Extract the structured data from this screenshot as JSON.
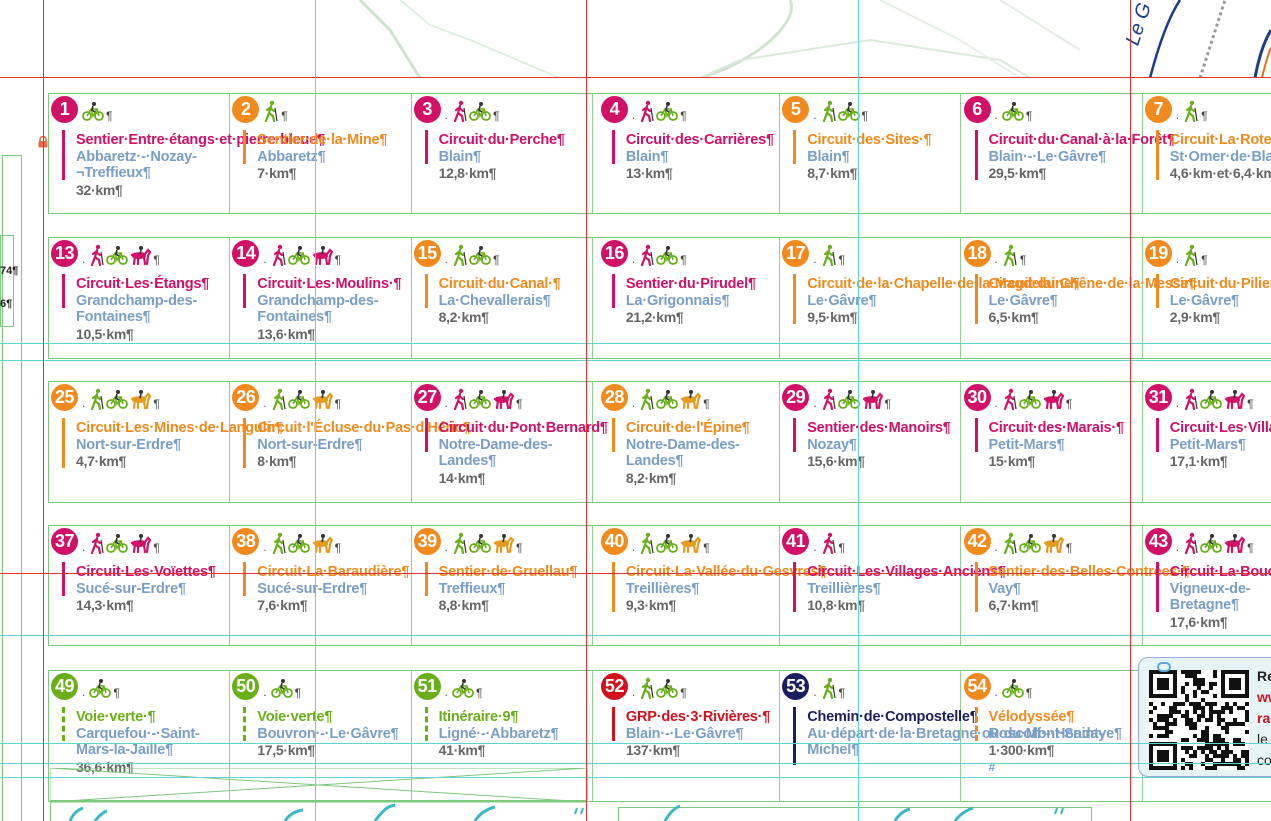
{
  "colors": {
    "magenta": "#d01166",
    "orange": "#f08a1e",
    "green": "#6aae1a",
    "red": "#d2111d",
    "navy": "#1b1f5e",
    "place": "#7a9ec5",
    "distance": "#666666"
  },
  "left_margin_numbers": [
    "74¶",
    "6¶"
  ],
  "rows": [
    {
      "cells": [
        {
          "num": "1",
          "color": "magenta",
          "icons": [
            "bike-icon"
          ],
          "dot": false,
          "title": "Sentier·Entre·étangs·et·pierre·bleue¶",
          "place": "Abbaretz·-·Nozay-¬Treffieux¶",
          "dist": "32·km¶"
        },
        {
          "num": "2",
          "color": "orange",
          "icons": [
            "hiker-icon"
          ],
          "dot": false,
          "title": "Sentier·de·la·Mine¶",
          "place": "Abbaretz¶",
          "dist": "7·km¶"
        },
        {
          "num": "3",
          "color": "magenta",
          "icons": [
            "hiker-icon",
            "bike-icon"
          ],
          "dot": true,
          "title": "Circuit·du·Perche¶",
          "place": "Blain¶",
          "dist": "12,8·km¶"
        },
        {
          "num": "4",
          "color": "magenta",
          "icons": [
            "hiker-icon",
            "bike-icon"
          ],
          "dot": true,
          "title": "Circuit·des·Carrières¶",
          "place": "Blain¶",
          "dist": "13·km¶"
        },
        {
          "num": "5",
          "color": "orange",
          "icons": [
            "hiker-icon",
            "bike-icon"
          ],
          "dot": true,
          "title": "Circuit·des·Sites·¶",
          "place": "Blain¶",
          "dist": "8,7·km¶"
        },
        {
          "num": "6",
          "color": "magenta",
          "icons": [
            "bike-icon"
          ],
          "dot": true,
          "title": "Circuit·du·Canal·à·la·Forêt¶",
          "place": "Blain·-·Le·Gâvre¶",
          "dist": "29,5·km¶"
        },
        {
          "num": "7",
          "color": "orange",
          "icons": [
            "hiker-icon"
          ],
          "dot": true,
          "title": "Circuit·La·Rote·du·Farinier¶",
          "place": "St·Omer·de·Blain¶",
          "dist": "4,6·km·et·6,4·km¶"
        }
      ]
    },
    {
      "cells": [
        {
          "num": "13",
          "color": "magenta",
          "icons": [
            "hiker-icon",
            "bike-icon",
            "horse-icon"
          ],
          "dot": true,
          "title": "Circuit·Les·Étangs¶",
          "place": "Grandchamp-des-Fontaines¶",
          "dist": "10,5·km¶"
        },
        {
          "num": "14",
          "color": "magenta",
          "icons": [
            "hiker-icon",
            "bike-icon",
            "horse-icon"
          ],
          "dot": true,
          "title": "Circuit·Les·Moulins·¶",
          "place": "Grandchamp-des-Fontaines¶",
          "dist": "13,6·km¶"
        },
        {
          "num": "15",
          "color": "orange",
          "icons": [
            "hiker-icon",
            "bike-icon"
          ],
          "dot": true,
          "title": "Circuit·du·Canal·¶",
          "place": "La·Chevallerais¶",
          "dist": "8,2·km¶"
        },
        {
          "num": "16",
          "color": "magenta",
          "icons": [
            "hiker-icon",
            "bike-icon"
          ],
          "dot": true,
          "title": "Sentier·du·Pirudel¶",
          "place": "La·Grigonnais¶",
          "dist": "21,2·km¶"
        },
        {
          "num": "17",
          "color": "orange",
          "icons": [
            "hiker-icon"
          ],
          "dot": true,
          "title": "Circuit·de·la·Chapelle·de·la·Magdelaine¶",
          "place": "Le·Gâvre¶",
          "dist": "9,5·km¶"
        },
        {
          "num": "18",
          "color": "orange",
          "icons": [
            "hiker-icon"
          ],
          "dot": true,
          "title": "Circuit·du·Chêne·de·la·Messe¶",
          "place": "Le·Gâvre¶",
          "dist": "6,5·km¶"
        },
        {
          "num": "19",
          "color": "orange",
          "icons": [
            "hiker-icon"
          ],
          "dot": true,
          "title": "Circuit·du·Pilier¶",
          "place": "Le·Gâvre¶",
          "dist": "2,9·km¶"
        }
      ]
    },
    {
      "cells": [
        {
          "num": "25",
          "color": "orange",
          "icons": [
            "hiker-icon",
            "bike-icon",
            "horse-icon"
          ],
          "dot": true,
          "title": "Circuit·Les·Mines·de·Languin¶",
          "place": "Nort-sur-Erdre¶",
          "dist": "4,7·km¶"
        },
        {
          "num": "26",
          "color": "orange",
          "icons": [
            "hiker-icon",
            "bike-icon",
            "horse-icon"
          ],
          "dot": true,
          "title": "Circuit·l'Écluse·du·Pas·d'Héric¶",
          "place": "Nort-sur-Erdre¶",
          "dist": "8·km¶"
        },
        {
          "num": "27",
          "color": "magenta",
          "icons": [
            "hiker-icon",
            "bike-icon",
            "horse-icon"
          ],
          "dot": true,
          "title": "Circuit·du·Pont·Bernard¶",
          "place": "Notre-Dame-des-Landes¶",
          "dist": "14·km¶"
        },
        {
          "num": "28",
          "color": "orange",
          "icons": [
            "hiker-icon",
            "bike-icon",
            "horse-icon"
          ],
          "dot": true,
          "title": "Circuit·de·l'Épine¶",
          "place": "Notre-Dame-des-Landes¶",
          "dist": "8,2·km¶"
        },
        {
          "num": "29",
          "color": "magenta",
          "icons": [
            "hiker-icon",
            "bike-icon",
            "horse-icon"
          ],
          "dot": true,
          "title": "Sentier·des·Manoirs¶",
          "place": "Nozay¶",
          "dist": "15,6·km¶"
        },
        {
          "num": "30",
          "color": "magenta",
          "icons": [
            "hiker-icon",
            "bike-icon",
            "horse-icon"
          ],
          "dot": true,
          "title": "Circuit·des·Marais·¶",
          "place": "Petit-Mars¶",
          "dist": "15·km¶"
        },
        {
          "num": "31",
          "color": "magenta",
          "icons": [
            "hiker-icon",
            "bike-icon",
            "horse-icon"
          ],
          "dot": true,
          "title": "Circuit·Les·Villages·¶",
          "place": "Petit-Mars¶",
          "dist": "17,1·km¶"
        }
      ]
    },
    {
      "cells": [
        {
          "num": "37",
          "color": "magenta",
          "icons": [
            "hiker-icon",
            "bike-icon",
            "horse-icon"
          ],
          "dot": true,
          "title": "Circuit·Les·Voïettes¶",
          "place": "Sucé-sur-Erdre¶",
          "dist": "14,3·km¶"
        },
        {
          "num": "38",
          "color": "orange",
          "icons": [
            "hiker-icon",
            "bike-icon",
            "horse-icon"
          ],
          "dot": true,
          "title": "Circuit·La·Baraudière¶",
          "place": "Sucé-sur-Erdre¶",
          "dist": "7,6·km¶"
        },
        {
          "num": "39",
          "color": "orange",
          "icons": [
            "hiker-icon",
            "bike-icon",
            "horse-icon"
          ],
          "dot": true,
          "title": "Sentier·de·Gruellau¶",
          "place": "Treffieux¶",
          "dist": "8,8·km¶"
        },
        {
          "num": "40",
          "color": "orange",
          "icons": [
            "hiker-icon",
            "bike-icon",
            "horse-icon"
          ],
          "dot": true,
          "title": "Circuit·La·Vallée·du·Gesvres¶",
          "place": "Treillières¶",
          "dist": "9,3·km¶"
        },
        {
          "num": "41",
          "color": "magenta",
          "icons": [
            "hiker-icon"
          ],
          "dot": true,
          "title": "Circuit·Les·Villages·Anciens¶",
          "place": "Treillières¶",
          "dist": "10,8·km¶"
        },
        {
          "num": "42",
          "color": "orange",
          "icons": [
            "hiker-icon",
            "bike-icon",
            "horse-icon"
          ],
          "dot": true,
          "title": "Sentier·des·Belles·Contrées·¶",
          "place": "Vay¶",
          "dist": "6,7·km¶"
        },
        {
          "num": "43",
          "color": "magenta",
          "icons": [
            "hiker-icon",
            "bike-icon",
            "horse-icon"
          ],
          "dot": true,
          "title": "Circuit·La·Boucle·du·Moulin¶",
          "place": "Vigneux-de-Bretagne¶",
          "dist": "17,6·km¶"
        }
      ]
    },
    {
      "cells": [
        {
          "num": "49",
          "color": "green",
          "icons": [
            "bike-icon"
          ],
          "dot": true,
          "dashed": true,
          "title": "Voie·verte·¶",
          "place": "Carquefou·-·Saint-Mars-la-Jaille¶",
          "dist": "36,6·km¶"
        },
        {
          "num": "50",
          "color": "green",
          "icons": [
            "bike-icon"
          ],
          "dot": true,
          "dashed": true,
          "title": "Voie·verte¶",
          "place": "Bouvron·-·Le·Gâvre¶",
          "dist": "17,5·km¶"
        },
        {
          "num": "51",
          "color": "green",
          "icons": [
            "bike-icon"
          ],
          "dot": true,
          "dashed": true,
          "title": "Itinéraire·9¶",
          "place": "Ligné·-·Abbaretz¶",
          "dist": "41·km¶"
        },
        {
          "num": "52",
          "color": "red",
          "icons": [
            "hiker-icon",
            "bike-icon"
          ],
          "dot": true,
          "title": "GRP·des·3·Rivières·¶",
          "place": "Blain·-·Le·Gâvre¶",
          "dist": "137·km¶"
        },
        {
          "num": "53",
          "color": "navy",
          "icons": [
            "hiker-icon"
          ],
          "dot": true,
          "title": "Chemin·de·Compostelle¶",
          "place": "Au·départ·de·la·Bretagne·ou·du·Mont·Saint-Michel¶",
          "dist": ""
        },
        {
          "num": "54",
          "color": "orange",
          "icons": [
            "bike-icon"
          ],
          "dot": true,
          "dashed": true,
          "title": "Vélodyssée¶",
          "place": "Roscoff·-·Hendaye¶",
          "dist": "1·300·km¶",
          "extra": "#"
        }
      ]
    }
  ],
  "qr_panel": {
    "lines": [
      "Re",
      "ww",
      "ra",
      "le",
      "co"
    ]
  },
  "map": {
    "road_label": "Le G"
  }
}
